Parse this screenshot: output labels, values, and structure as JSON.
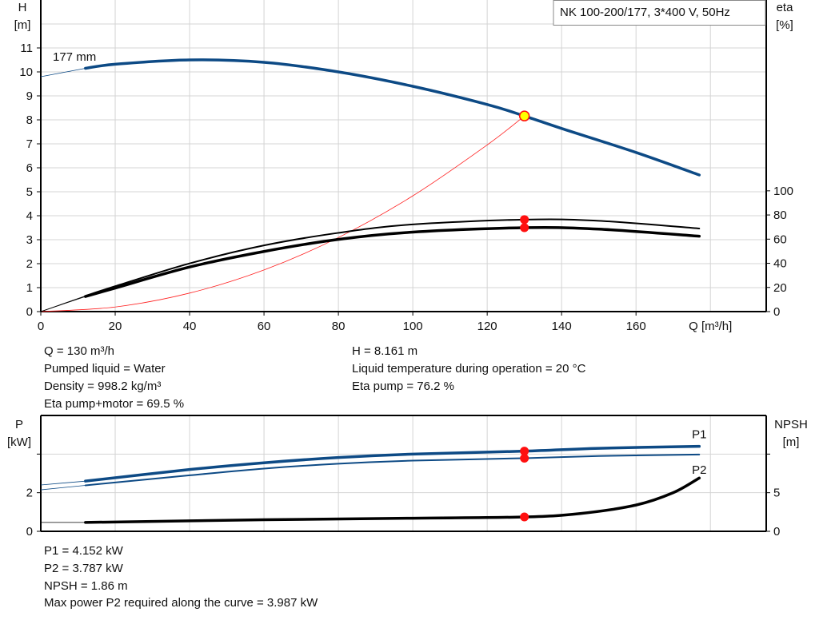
{
  "chart_data": [
    {
      "type": "line",
      "title": "NK 100-200/177, 3*400 V, 50Hz",
      "xlabel": "Q [m³/h]",
      "ylabel": "H\n[m]",
      "y2label": "eta\n[%]",
      "xlim": [
        0,
        195
      ],
      "ylim": [
        0,
        13
      ],
      "y2lim": [
        0,
        258
      ],
      "xticks": [
        0,
        20,
        40,
        60,
        80,
        100,
        120,
        140,
        160
      ],
      "yticks": [
        0,
        1,
        2,
        3,
        4,
        5,
        6,
        7,
        8,
        9,
        10,
        11
      ],
      "y2ticks": [
        0,
        20,
        40,
        60,
        80,
        100
      ],
      "grid": true,
      "curve_label": "177 mm",
      "series": [
        {
          "key": "H",
          "axis": "left",
          "color": "#0d4a85",
          "range_start": 12,
          "points": [
            [
              0,
              9.8
            ],
            [
              12,
              10.15
            ],
            [
              20,
              10.32
            ],
            [
              40,
              10.5
            ],
            [
              60,
              10.4
            ],
            [
              80,
              10.0
            ],
            [
              100,
              9.4
            ],
            [
              120,
              8.64
            ],
            [
              130,
              8.161
            ],
            [
              140,
              7.64
            ],
            [
              160,
              6.64
            ],
            [
              177,
              5.7
            ]
          ]
        },
        {
          "key": "system",
          "axis": "left",
          "color": "#ff2020",
          "range_start": 0,
          "points": [
            [
              0,
              0
            ],
            [
              20,
              0.193
            ],
            [
              40,
              0.773
            ],
            [
              60,
              1.738
            ],
            [
              80,
              3.09
            ],
            [
              100,
              4.829
            ],
            [
              120,
              6.954
            ],
            [
              130,
              8.161
            ]
          ]
        },
        {
          "key": "eta_pump",
          "axis": "right",
          "color": "#000000",
          "range_start": 12,
          "points": [
            [
              0,
              0
            ],
            [
              12,
              13
            ],
            [
              20,
              21
            ],
            [
              40,
              39.9
            ],
            [
              60,
              54.8
            ],
            [
              80,
              65.2
            ],
            [
              100,
              72.2
            ],
            [
              130,
              76.2
            ],
            [
              150,
              75.2
            ],
            [
              177,
              68.8
            ]
          ]
        },
        {
          "key": "eta_pump_motor",
          "axis": "right",
          "color": "#000000",
          "range_start": 12,
          "points": [
            [
              0,
              0
            ],
            [
              12,
              12.5
            ],
            [
              20,
              19.5
            ],
            [
              40,
              36.9
            ],
            [
              60,
              49.8
            ],
            [
              80,
              59.8
            ],
            [
              100,
              65.8
            ],
            [
              130,
              69.5
            ],
            [
              150,
              68.3
            ],
            [
              177,
              62.4
            ]
          ]
        }
      ],
      "operating_point": {
        "Q": 130,
        "H": 8.161,
        "eta_pump": 76.2,
        "eta_pump_motor": 69.5
      }
    },
    {
      "type": "line",
      "ylabel": "P\n[kW]",
      "y2label": "NPSH\n[m]",
      "xlim": [
        0,
        195
      ],
      "ylim": [
        0,
        6
      ],
      "y2lim": [
        0,
        15
      ],
      "yticks": [
        0,
        2,
        4
      ],
      "ytick_labels": [
        "0",
        "2",
        ""
      ],
      "y2ticks": [
        0,
        5,
        10
      ],
      "y2tick_labels": [
        "0",
        "5",
        ""
      ],
      "grid": true,
      "series": [
        {
          "key": "P1",
          "name": "P1",
          "axis": "left",
          "color": "#0d4a85",
          "range_start": 12,
          "points": [
            [
              0,
              2.4
            ],
            [
              12,
              2.6
            ],
            [
              40,
              3.2
            ],
            [
              60,
              3.55
            ],
            [
              80,
              3.82
            ],
            [
              100,
              4.0
            ],
            [
              130,
              4.152
            ],
            [
              150,
              4.3
            ],
            [
              177,
              4.4
            ]
          ]
        },
        {
          "key": "P2",
          "name": "P2",
          "axis": "left",
          "color": "#0d4a85",
          "range_start": 12,
          "points": [
            [
              0,
              2.15
            ],
            [
              12,
              2.38
            ],
            [
              40,
              2.9
            ],
            [
              60,
              3.25
            ],
            [
              80,
              3.5
            ],
            [
              100,
              3.66
            ],
            [
              130,
              3.787
            ],
            [
              150,
              3.9
            ],
            [
              177,
              3.98
            ]
          ]
        },
        {
          "key": "NPSH",
          "axis": "right",
          "color": "#000000",
          "range_start": 12,
          "points": [
            [
              0,
              1.15
            ],
            [
              12,
              1.15
            ],
            [
              60,
              1.5
            ],
            [
              100,
              1.7
            ],
            [
              130,
              1.86
            ],
            [
              145,
              2.3
            ],
            [
              160,
              3.4
            ],
            [
              170,
              5.0
            ],
            [
              177,
              6.9
            ]
          ]
        }
      ],
      "operating_point": {
        "Q": 130,
        "P1": 4.152,
        "P2": 3.787,
        "NPSH": 1.86
      }
    }
  ],
  "info_top": {
    "left": [
      "Q = 130 m³/h",
      "Pumped liquid = Water",
      "Density = 998.2 kg/m³",
      "Eta pump+motor = 69.5 %"
    ],
    "right": [
      "H = 8.161 m",
      "Liquid temperature during operation = 20 °C",
      "Eta pump = 76.2 %"
    ]
  },
  "info_bottom": [
    "P1 = 4.152 kW",
    "P2 = 3.787 kW",
    "NPSH = 1.86 m",
    "Max power P2 required along the curve = 3.987 kW"
  ]
}
